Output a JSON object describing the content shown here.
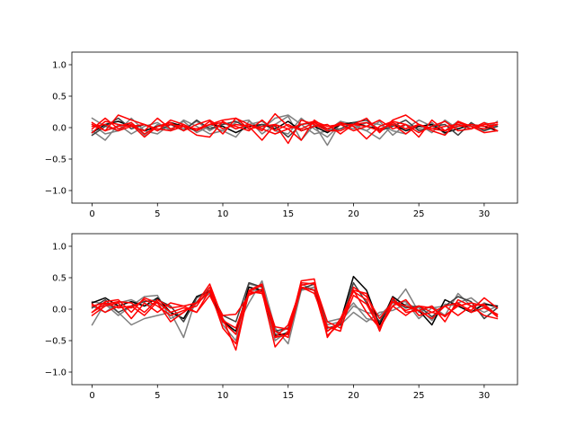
{
  "chart_data": [
    {
      "type": "line",
      "title": "",
      "xlabel": "",
      "ylabel": "",
      "xlim": [
        -1.55,
        32.55
      ],
      "ylim": [
        -1.2,
        1.2
      ],
      "xticks": [
        "0",
        "5",
        "10",
        "15",
        "20",
        "25",
        "30"
      ],
      "yticks": [
        "−1.0",
        "−0.5",
        "0.0",
        "0.5",
        "1.0"
      ],
      "grid": false,
      "x": [
        0,
        1,
        2,
        3,
        4,
        5,
        6,
        7,
        8,
        9,
        10,
        11,
        12,
        13,
        14,
        15,
        16,
        17,
        18,
        19,
        20,
        21,
        22,
        23,
        24,
        25,
        26,
        27,
        28,
        29,
        30,
        31
      ],
      "series": [
        {
          "color": "#7f7f7f",
          "values": [
            0.15,
            0.02,
            -0.05,
            0.08,
            -0.12,
            0.05,
            -0.03,
            0.1,
            -0.08,
            0.02,
            -0.05,
            0.08,
            0.12,
            -0.1,
            0.05,
            0.18,
            -0.2,
            0.05,
            -0.28,
            0.08,
            0.02,
            -0.05,
            0.1,
            -0.12,
            0.05,
            -0.02,
            0.08,
            -0.1,
            0.05,
            0.02,
            -0.05,
            0.1
          ]
        },
        {
          "color": "#7f7f7f",
          "values": [
            -0.05,
            -0.2,
            0.05,
            -0.1,
            0.02,
            0.08,
            -0.05,
            0.12,
            0.02,
            -0.1,
            -0.05,
            -0.15,
            0.1,
            -0.02,
            0.15,
            0.2,
            0.05,
            -0.1,
            -0.05,
            0.1,
            0.05,
            -0.05,
            -0.18,
            0.05,
            -0.02,
            0.12,
            0.02,
            -0.05,
            0.1,
            -0.02,
            0.08,
            0.02
          ]
        },
        {
          "color": "#7f7f7f",
          "values": [
            0.05,
            -0.1,
            -0.05,
            0.15,
            -0.05,
            -0.1,
            0.05,
            -0.02,
            0.1,
            -0.05,
            0.08,
            -0.02,
            0.05,
            0.1,
            -0.05,
            -0.1,
            0.15,
            -0.02,
            -0.15,
            0.05,
            -0.02,
            0.08,
            0.05,
            -0.05,
            -0.1,
            0.05,
            -0.08,
            0.12,
            -0.02,
            0.05,
            -0.05,
            0.05
          ]
        },
        {
          "color": "#000000",
          "values": [
            -0.08,
            0.05,
            0.1,
            0.02,
            -0.05,
            0.02,
            0.08,
            0.02,
            -0.05,
            0.05,
            0.02,
            -0.08,
            0.02,
            0.05,
            -0.02,
            0.1,
            -0.05,
            0.02,
            -0.08,
            0.05,
            0.08,
            0.02,
            -0.02,
            0.05,
            -0.05,
            0.02,
            0.05,
            -0.08,
            -0.02,
            0.05,
            0.02,
            -0.05
          ]
        },
        {
          "color": "#404040",
          "values": [
            -0.12,
            0.02,
            0.15,
            -0.02,
            0.05,
            -0.05,
            0.05,
            -0.05,
            0.12,
            -0.02,
            0.05,
            0.1,
            -0.02,
            0.05,
            0.02,
            -0.15,
            0.05,
            0.08,
            -0.05,
            -0.02,
            0.08,
            0.12,
            -0.05,
            0.02,
            0.12,
            -0.05,
            0.02,
            0.05,
            -0.12,
            0.08,
            -0.05,
            0.02
          ]
        },
        {
          "color": "#ff0000",
          "values": [
            -0.08,
            0.1,
            0.05,
            0.02,
            -0.05,
            0.15,
            -0.02,
            0.05,
            -0.05,
            0.1,
            -0.1,
            0.15,
            -0.02,
            0.02,
            0.05,
            -0.25,
            0.12,
            0.05,
            -0.05,
            -0.05,
            0.05,
            0.15,
            -0.08,
            0.12,
            0.2,
            0.05,
            -0.05,
            -0.12,
            0.1,
            0.02,
            -0.08,
            -0.05
          ]
        },
        {
          "color": "#ff0000",
          "values": [
            0.05,
            -0.05,
            0.2,
            0.12,
            0.05,
            -0.02,
            -0.05,
            0.02,
            -0.12,
            -0.15,
            0.1,
            -0.02,
            0.05,
            -0.05,
            0.22,
            0.02,
            -0.02,
            0.08,
            -0.02,
            0.05,
            -0.05,
            0.02,
            0.12,
            -0.02,
            0.05,
            -0.15,
            0.12,
            -0.05,
            0.02,
            0.05,
            0.02,
            0.05
          ]
        },
        {
          "color": "#ff0000",
          "values": [
            -0.02,
            0.15,
            -0.02,
            0.05,
            -0.15,
            0.02,
            0.08,
            -0.05,
            0.05,
            0.12,
            -0.02,
            0.05,
            0.02,
            -0.2,
            0.05,
            -0.02,
            -0.2,
            0.12,
            -0.02,
            0.08,
            0.02,
            -0.18,
            0.02,
            0.1,
            0.05,
            -0.08,
            0.02,
            0.1,
            -0.05,
            -0.02,
            0.08,
            -0.05
          ]
        },
        {
          "color": "#ff0000",
          "values": [
            0.08,
            -0.05,
            0.02,
            0.08,
            -0.1,
            0.02,
            0.05,
            0.02,
            -0.02,
            0.05,
            0.08,
            0.02,
            -0.05,
            0.12,
            -0.05,
            0.05,
            -0.05,
            0.02,
            0.05,
            -0.1,
            0.05,
            0.02,
            -0.05,
            0.08,
            -0.02,
            0.05,
            -0.02,
            0.02,
            0.05,
            -0.02,
            0.05,
            0.08
          ]
        },
        {
          "color": "#ff0000",
          "values": [
            0.02,
            0.05,
            -0.05,
            0.02,
            0.05,
            -0.05,
            0.12,
            0.05,
            -0.05,
            0.05,
            0.12,
            0.15,
            0.05,
            -0.02,
            -0.1,
            -0.02,
            0.05,
            0.1,
            0.02,
            0.05,
            0.05,
            0.08,
            -0.02,
            0.05,
            -0.1,
            0.05,
            -0.02,
            -0.05,
            0.08,
            0.02,
            -0.02,
            0.05
          ]
        }
      ]
    },
    {
      "type": "line",
      "title": "",
      "xlabel": "",
      "ylabel": "",
      "xlim": [
        -1.55,
        32.55
      ],
      "ylim": [
        -1.2,
        1.2
      ],
      "xticks": [
        "0",
        "5",
        "10",
        "15",
        "20",
        "25",
        "30"
      ],
      "yticks": [
        "−1.0",
        "−0.5",
        "0.0",
        "0.5",
        "1.0"
      ],
      "grid": false,
      "x": [
        0,
        1,
        2,
        3,
        4,
        5,
        6,
        7,
        8,
        9,
        10,
        11,
        12,
        13,
        14,
        15,
        16,
        17,
        18,
        19,
        20,
        21,
        22,
        23,
        24,
        25,
        26,
        27,
        28,
        29,
        30,
        31
      ],
      "series": [
        {
          "color": "#7f7f7f",
          "values": [
            -0.25,
            0.1,
            -0.05,
            -0.25,
            -0.15,
            -0.1,
            -0.05,
            -0.45,
            0.2,
            0.3,
            -0.2,
            -0.3,
            0.1,
            0.45,
            -0.3,
            -0.55,
            0.3,
            0.35,
            -0.2,
            -0.15,
            0.1,
            -0.15,
            -0.2,
            0.05,
            0.32,
            -0.05,
            0.05,
            -0.1,
            0.25,
            0.05,
            -0.05,
            0.05
          ]
        },
        {
          "color": "#7f7f7f",
          "values": [
            0.05,
            -0.05,
            0.1,
            0.15,
            0.05,
            0.1,
            -0.05,
            -0.15,
            0.1,
            0.25,
            -0.25,
            -0.5,
            0.4,
            0.35,
            -0.5,
            -0.35,
            0.4,
            0.3,
            -0.25,
            -0.2,
            0.05,
            -0.05,
            -0.1,
            0.1,
            0.12,
            -0.15,
            0.02,
            0.05,
            0.1,
            0.18,
            0.02,
            -0.08
          ]
        },
        {
          "color": "#7f7f7f",
          "values": [
            0.12,
            0.08,
            -0.1,
            0.05,
            0.2,
            0.22,
            -0.15,
            -0.05,
            0.12,
            0.35,
            -0.15,
            -0.4,
            0.3,
            0.3,
            -0.4,
            -0.3,
            0.3,
            0.35,
            -0.3,
            -0.25,
            -0.05,
            -0.2,
            -0.05,
            -0.02,
            0.08,
            0.02,
            -0.18,
            0.08,
            0.05,
            -0.05,
            0.1,
            0.02
          ]
        },
        {
          "color": "#000000",
          "values": [
            0.1,
            0.18,
            0.05,
            0.12,
            0.05,
            0.18,
            -0.05,
            -0.15,
            0.2,
            0.28,
            -0.2,
            -0.35,
            0.35,
            0.3,
            -0.42,
            -0.38,
            0.35,
            0.3,
            -0.35,
            -0.2,
            0.52,
            0.3,
            -0.25,
            0.2,
            0.05,
            -0.02,
            -0.25,
            0.15,
            0.05,
            -0.05,
            0.08,
            0.05
          ]
        },
        {
          "color": "#404040",
          "values": [
            0.02,
            0.15,
            -0.05,
            0.05,
            0.12,
            0.15,
            0.05,
            -0.2,
            0.18,
            0.3,
            -0.1,
            -0.2,
            0.42,
            0.35,
            -0.35,
            -0.3,
            0.32,
            0.4,
            -0.3,
            -0.25,
            0.42,
            0.1,
            -0.2,
            0.15,
            0.02,
            0.05,
            -0.12,
            0.05,
            0.2,
            0.12,
            -0.15,
            0.02
          ]
        },
        {
          "color": "#ff0000",
          "values": [
            -0.05,
            0.12,
            0.15,
            -0.05,
            0.18,
            0.1,
            -0.2,
            -0.05,
            0.1,
            0.4,
            -0.15,
            -0.65,
            0.3,
            0.4,
            -0.45,
            -0.4,
            0.45,
            0.48,
            -0.45,
            -0.15,
            0.28,
            0.15,
            -0.35,
            0.18,
            -0.05,
            -0.02,
            0.05,
            -0.2,
            0.15,
            0.05,
            0.08,
            -0.1
          ]
        },
        {
          "color": "#ff0000",
          "values": [
            -0.1,
            0.05,
            0.1,
            -0.15,
            0.1,
            -0.05,
            0.1,
            0.05,
            -0.05,
            0.3,
            -0.3,
            -0.55,
            0.25,
            0.28,
            -0.6,
            -0.35,
            0.42,
            0.4,
            -0.35,
            -0.2,
            0.3,
            -0.05,
            -0.3,
            0.05,
            0.15,
            -0.1,
            -0.05,
            0.05,
            -0.1,
            0.05,
            -0.1,
            -0.15
          ]
        },
        {
          "color": "#ff0000",
          "values": [
            0.05,
            0.1,
            0.02,
            0.05,
            -0.1,
            0.12,
            -0.05,
            0.02,
            -0.05,
            0.22,
            -0.2,
            -0.4,
            0.28,
            0.25,
            -0.35,
            -0.45,
            0.35,
            0.25,
            -0.28,
            -0.35,
            0.35,
            0.2,
            -0.15,
            0.12,
            0.05,
            -0.02,
            -0.15,
            0.05,
            0.1,
            -0.05,
            0.02,
            -0.08
          ]
        },
        {
          "color": "#ff0000",
          "values": [
            -0.05,
            0.08,
            0.12,
            0.1,
            -0.05,
            0.15,
            0.02,
            0.05,
            0.1,
            0.28,
            -0.1,
            -0.08,
            0.22,
            0.32,
            -0.28,
            -0.32,
            0.38,
            0.42,
            -0.2,
            -0.3,
            0.22,
            0.08,
            -0.3,
            0.05,
            -0.1,
            0.05,
            0.02,
            -0.12,
            0.08,
            -0.02,
            0.18,
            0.02
          ]
        },
        {
          "color": "#ff0000",
          "values": [
            0.08,
            -0.05,
            0.05,
            0.02,
            0.15,
            0.05,
            -0.1,
            -0.02,
            0.05,
            0.35,
            -0.18,
            -0.3,
            0.28,
            0.38,
            -0.45,
            -0.25,
            0.35,
            0.3,
            -0.42,
            -0.22,
            0.3,
            0.25,
            -0.3,
            0.12,
            -0.02,
            0.05,
            -0.05,
            -0.1,
            0.05,
            0.1,
            0.05,
            -0.12
          ]
        }
      ]
    }
  ]
}
